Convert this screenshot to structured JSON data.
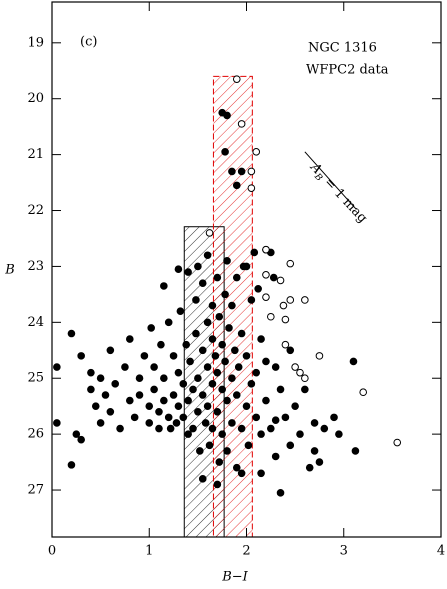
{
  "chart_data": {
    "type": "scatter",
    "panel_label": "(c)",
    "title_lines": [
      "NGC 1316",
      "WFPC2 data"
    ],
    "x_label": "B−I",
    "y_label": "B",
    "xlim": [
      0,
      4
    ],
    "ylim": [
      18.27,
      27.84
    ],
    "y_inverted": true,
    "xticks": [
      0,
      1,
      2,
      3,
      4
    ],
    "yticks": [
      19,
      20,
      21,
      22,
      23,
      24,
      25,
      26,
      27
    ],
    "reddening_label": {
      "main": "A",
      "sub": "B",
      "rest": " = 1 mag"
    },
    "reddening_vector": {
      "x": [
        2.6,
        3.13
      ],
      "y": [
        20.95,
        21.98
      ]
    },
    "regions": [
      {
        "x": [
          1.36,
          1.77
        ],
        "y": [
          22.29,
          27.84
        ],
        "color": "#000000"
      },
      {
        "x": [
          1.66,
          2.06
        ],
        "y": [
          19.6,
          27.84
        ],
        "color": "#e00000"
      }
    ],
    "series": [
      {
        "marker": "filled",
        "color": "#000000",
        "x": [
          0.05,
          0.05,
          0.2,
          0.25,
          0.2,
          0.3,
          0.3,
          0.4,
          0.4,
          0.45,
          0.5,
          0.5,
          0.55,
          0.6,
          0.6,
          0.65,
          0.7,
          0.75,
          0.8,
          0.8,
          0.85,
          0.9,
          0.9,
          0.95,
          1.0,
          1.0,
          1.02,
          1.05,
          1.05,
          1.1,
          1.1,
          1.12,
          1.15,
          1.15,
          1.2,
          1.2,
          1.22,
          1.25,
          1.25,
          1.28,
          1.3,
          1.3,
          1.32,
          1.35,
          1.35,
          1.38,
          1.4,
          1.4,
          1.4,
          1.42,
          1.45,
          1.45,
          1.48,
          1.48,
          1.5,
          1.5,
          1.52,
          1.55,
          1.55,
          1.55,
          1.58,
          1.6,
          1.6,
          1.6,
          1.62,
          1.65,
          1.65,
          1.65,
          1.65,
          1.68,
          1.7,
          1.7,
          1.7,
          1.72,
          1.72,
          1.75,
          1.75,
          1.75,
          1.78,
          1.78,
          1.8,
          1.8,
          1.8,
          1.82,
          1.85,
          1.85,
          1.85,
          1.88,
          1.9,
          1.9,
          1.9,
          1.92,
          1.95,
          1.95,
          1.97,
          2.0,
          2.0,
          2.02,
          2.05,
          2.05,
          2.08,
          2.1,
          2.1,
          2.12,
          2.15,
          2.15,
          2.2,
          2.2,
          2.25,
          2.28,
          2.3,
          2.3,
          2.35,
          2.35,
          2.4,
          2.45,
          2.45,
          2.5,
          2.55,
          2.6,
          2.65,
          2.7,
          2.75,
          2.7,
          2.8,
          2.9,
          2.95,
          3.1,
          3.12,
          2.3,
          1.55,
          1.7,
          1.95,
          2.15,
          1.85,
          1.75,
          1.8,
          1.78,
          1.95,
          1.9,
          2.2,
          2.25,
          1.5,
          1.15,
          1.3,
          1.6,
          2.0
        ],
        "y": [
          24.8,
          25.8,
          24.2,
          26.0,
          26.55,
          24.6,
          26.1,
          25.2,
          24.9,
          25.5,
          25.0,
          25.8,
          25.3,
          24.5,
          25.6,
          25.1,
          25.9,
          24.8,
          25.4,
          24.3,
          25.7,
          25.0,
          25.3,
          24.6,
          25.8,
          25.5,
          24.1,
          25.2,
          24.8,
          25.9,
          25.6,
          24.4,
          25.0,
          25.4,
          25.7,
          24.0,
          25.9,
          24.6,
          25.3,
          25.8,
          24.9,
          25.5,
          23.8,
          25.1,
          25.7,
          24.4,
          23.1,
          25.4,
          26.0,
          24.7,
          25.2,
          25.9,
          23.6,
          24.2,
          25.0,
          25.6,
          26.3,
          24.5,
          25.3,
          23.3,
          25.8,
          24.0,
          24.8,
          25.5,
          26.2,
          23.7,
          24.3,
          25.1,
          25.9,
          24.6,
          23.2,
          24.9,
          25.6,
          26.5,
          23.9,
          24.4,
          25.2,
          26.0,
          23.5,
          24.7,
          25.4,
          26.3,
          22.9,
          24.1,
          25.0,
          25.8,
          23.7,
          24.5,
          26.6,
          23.2,
          25.3,
          24.8,
          25.9,
          24.2,
          23.0,
          25.5,
          24.6,
          26.2,
          23.6,
          25.1,
          22.75,
          24.9,
          25.7,
          23.4,
          24.3,
          26.0,
          25.4,
          24.7,
          25.9,
          23.2,
          24.8,
          26.4,
          25.2,
          27.05,
          25.7,
          24.5,
          26.2,
          25.5,
          26.0,
          25.2,
          26.6,
          26.3,
          26.5,
          25.8,
          25.9,
          25.7,
          26.0,
          24.7,
          26.3,
          25.75,
          26.8,
          26.9,
          26.7,
          26.7,
          21.3,
          20.25,
          20.3,
          20.95,
          21.3,
          21.55,
          22.7,
          22.75,
          23.0,
          23.35,
          23.05,
          22.8,
          23.0
        ]
      },
      {
        "marker": "open",
        "color": "#000000",
        "x": [
          1.9,
          1.95,
          2.1,
          2.05,
          2.05,
          1.62,
          2.2,
          2.45,
          2.2,
          2.35,
          2.45,
          2.38,
          2.2,
          2.25,
          2.4,
          2.6,
          2.4,
          2.5,
          2.55,
          2.75,
          3.2,
          3.55,
          2.6
        ],
        "y": [
          19.65,
          20.45,
          20.95,
          21.3,
          21.6,
          22.4,
          22.7,
          22.95,
          23.15,
          23.25,
          23.6,
          23.7,
          23.55,
          23.9,
          23.95,
          23.6,
          24.4,
          24.8,
          24.9,
          24.6,
          25.25,
          26.15,
          25.0
        ]
      }
    ]
  }
}
